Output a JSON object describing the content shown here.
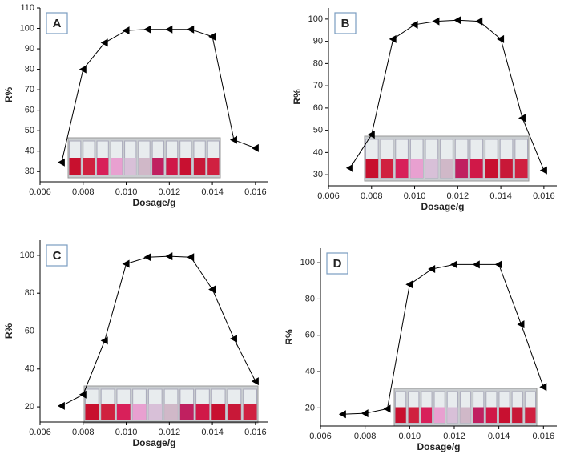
{
  "chart_data": [
    {
      "type": "line",
      "label": "A",
      "xlabel": "Dosage/g",
      "ylabel": "R%",
      "color": "#000000",
      "x": [
        0.007,
        0.008,
        0.009,
        0.01,
        0.011,
        0.012,
        0.013,
        0.014,
        0.015,
        0.016
      ],
      "values": [
        34.5,
        80,
        93,
        99,
        99.5,
        99.5,
        99.5,
        96,
        45.5,
        41.5
      ],
      "xlim": [
        0.006,
        0.0166
      ],
      "ylim": [
        25,
        110
      ],
      "xticks": [
        0.006,
        0.008,
        {
          "value": 0.01,
          "label": "0.010"
        },
        0.012,
        0.014,
        0.016
      ],
      "yticks": [
        30,
        40,
        50,
        60,
        70,
        80,
        90,
        100,
        110
      ]
    },
    {
      "type": "line",
      "label": "B",
      "xlabel": "Dosage/g",
      "ylabel": "R%",
      "color": "#000000",
      "x": [
        0.007,
        0.008,
        0.009,
        0.01,
        0.011,
        0.012,
        0.013,
        0.014,
        0.015,
        0.016
      ],
      "values": [
        33,
        48,
        91,
        97.5,
        99,
        99.5,
        99,
        91,
        55.5,
        32
      ],
      "xlim": [
        0.006,
        0.0166
      ],
      "ylim": [
        25,
        105
      ],
      "xticks": [
        0.006,
        0.008,
        {
          "value": 0.01,
          "label": "0.010"
        },
        0.012,
        0.014,
        0.016
      ],
      "yticks": [
        30,
        40,
        50,
        60,
        70,
        80,
        90,
        100
      ]
    },
    {
      "type": "line",
      "label": "C",
      "xlabel": "Dosage/g",
      "ylabel": "R%",
      "color": "#000000",
      "x": [
        0.007,
        0.008,
        0.009,
        0.01,
        0.011,
        0.012,
        0.013,
        0.014,
        0.015,
        0.016
      ],
      "values": [
        20.5,
        26.5,
        55,
        95.5,
        99,
        99.5,
        99,
        82,
        56,
        33.5
      ],
      "xlim": [
        0.006,
        0.0166
      ],
      "ylim": [
        12,
        108
      ],
      "xticks": [
        0.006,
        0.008,
        {
          "value": 0.01,
          "label": "0.010"
        },
        0.012,
        0.014,
        0.016
      ],
      "yticks": [
        20,
        40,
        60,
        80,
        100
      ]
    },
    {
      "type": "line",
      "label": "D",
      "xlabel": "Dosage/g",
      "ylabel": "R%",
      "color": "#000000",
      "x": [
        0.007,
        0.008,
        0.009,
        0.01,
        0.011,
        0.012,
        0.013,
        0.014,
        0.015,
        0.016
      ],
      "values": [
        16.5,
        17,
        19.5,
        88,
        96.5,
        99,
        99,
        99,
        66,
        31.5
      ],
      "xlim": [
        0.006,
        0.0166
      ],
      "ylim": [
        10,
        108
      ],
      "xticks": [
        0.006,
        0.008,
        {
          "value": 0.01,
          "label": "0.010"
        },
        0.012,
        0.014,
        0.016
      ],
      "yticks": [
        20,
        40,
        60,
        80,
        100
      ]
    }
  ]
}
